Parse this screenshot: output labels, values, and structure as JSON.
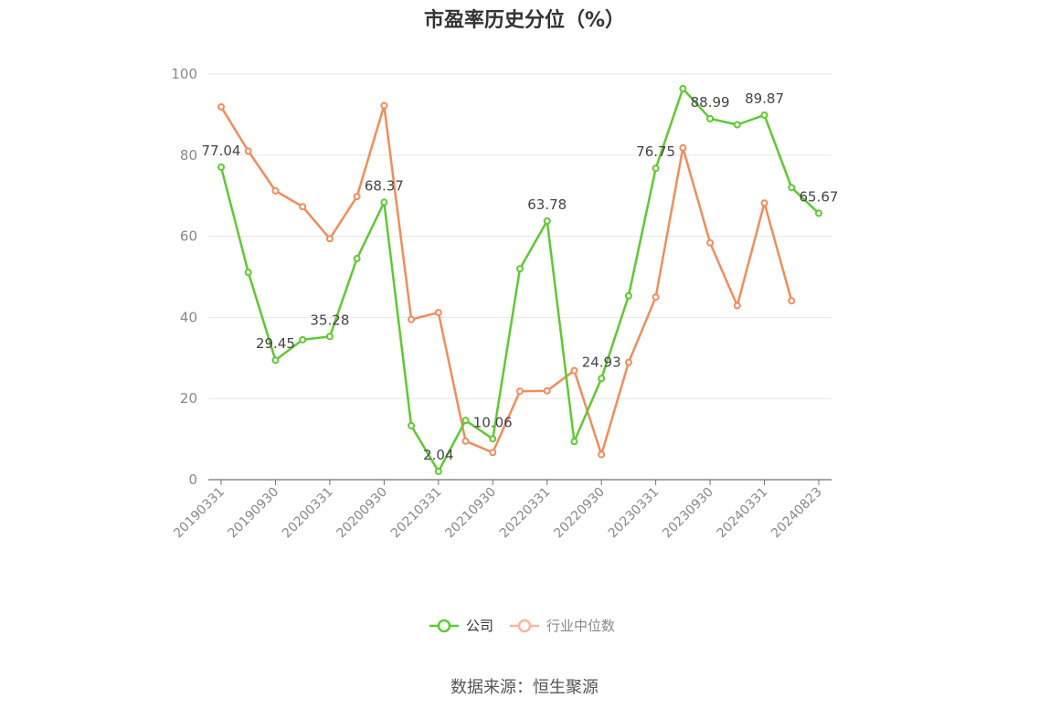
{
  "title": "市盈率历史分位（%）",
  "source": "数据来源：恒生聚源",
  "colors": {
    "company": "#5fc833",
    "industry": "#f28c5a",
    "industry_legend": "#f5b8a0"
  },
  "chart_data": {
    "type": "line",
    "title": "市盈率历史分位（%）",
    "ylim": [
      0,
      100
    ],
    "yticks": [
      0,
      20,
      40,
      60,
      80,
      100
    ],
    "grid": true,
    "legend_position": "bottom",
    "x": [
      "20190331",
      "20190630",
      "20190930",
      "20191231",
      "20200331",
      "20200630",
      "20200930",
      "20201231",
      "20210331",
      "20210630",
      "20210930",
      "20211231",
      "20220331",
      "20220630",
      "20220930",
      "20221231",
      "20230331",
      "20230630",
      "20230930",
      "20231231",
      "20240331",
      "20240630",
      "20240823"
    ],
    "x_tick_labels": [
      "20190331",
      "20190930",
      "20200331",
      "20200930",
      "20210331",
      "20210930",
      "20220331",
      "20220930",
      "20230331",
      "20230930",
      "20240331",
      "20240823"
    ],
    "series": [
      {
        "name": "公司",
        "values": [
          77.04,
          51.1,
          29.45,
          34.5,
          35.28,
          54.5,
          68.37,
          13.3,
          2.04,
          14.6,
          10.06,
          52.0,
          63.78,
          9.4,
          24.93,
          45.3,
          76.75,
          96.4,
          88.99,
          87.5,
          89.87,
          72.0,
          65.67
        ],
        "labels": {
          "0": "77.04",
          "2": "29.45",
          "4": "35.28",
          "6": "68.37",
          "8": "2.04",
          "10": "10.06",
          "12": "63.78",
          "14": "24.93",
          "16": "76.75",
          "18": "88.99",
          "20": "89.87",
          "22": "65.67"
        }
      },
      {
        "name": "行业中位数",
        "values": [
          91.9,
          81.0,
          71.2,
          67.3,
          59.4,
          69.8,
          92.2,
          39.5,
          41.2,
          9.5,
          6.7,
          21.8,
          21.9,
          26.9,
          6.2,
          28.9,
          45.0,
          81.8,
          58.4,
          42.9,
          68.2,
          44.1,
          null
        ]
      }
    ]
  }
}
